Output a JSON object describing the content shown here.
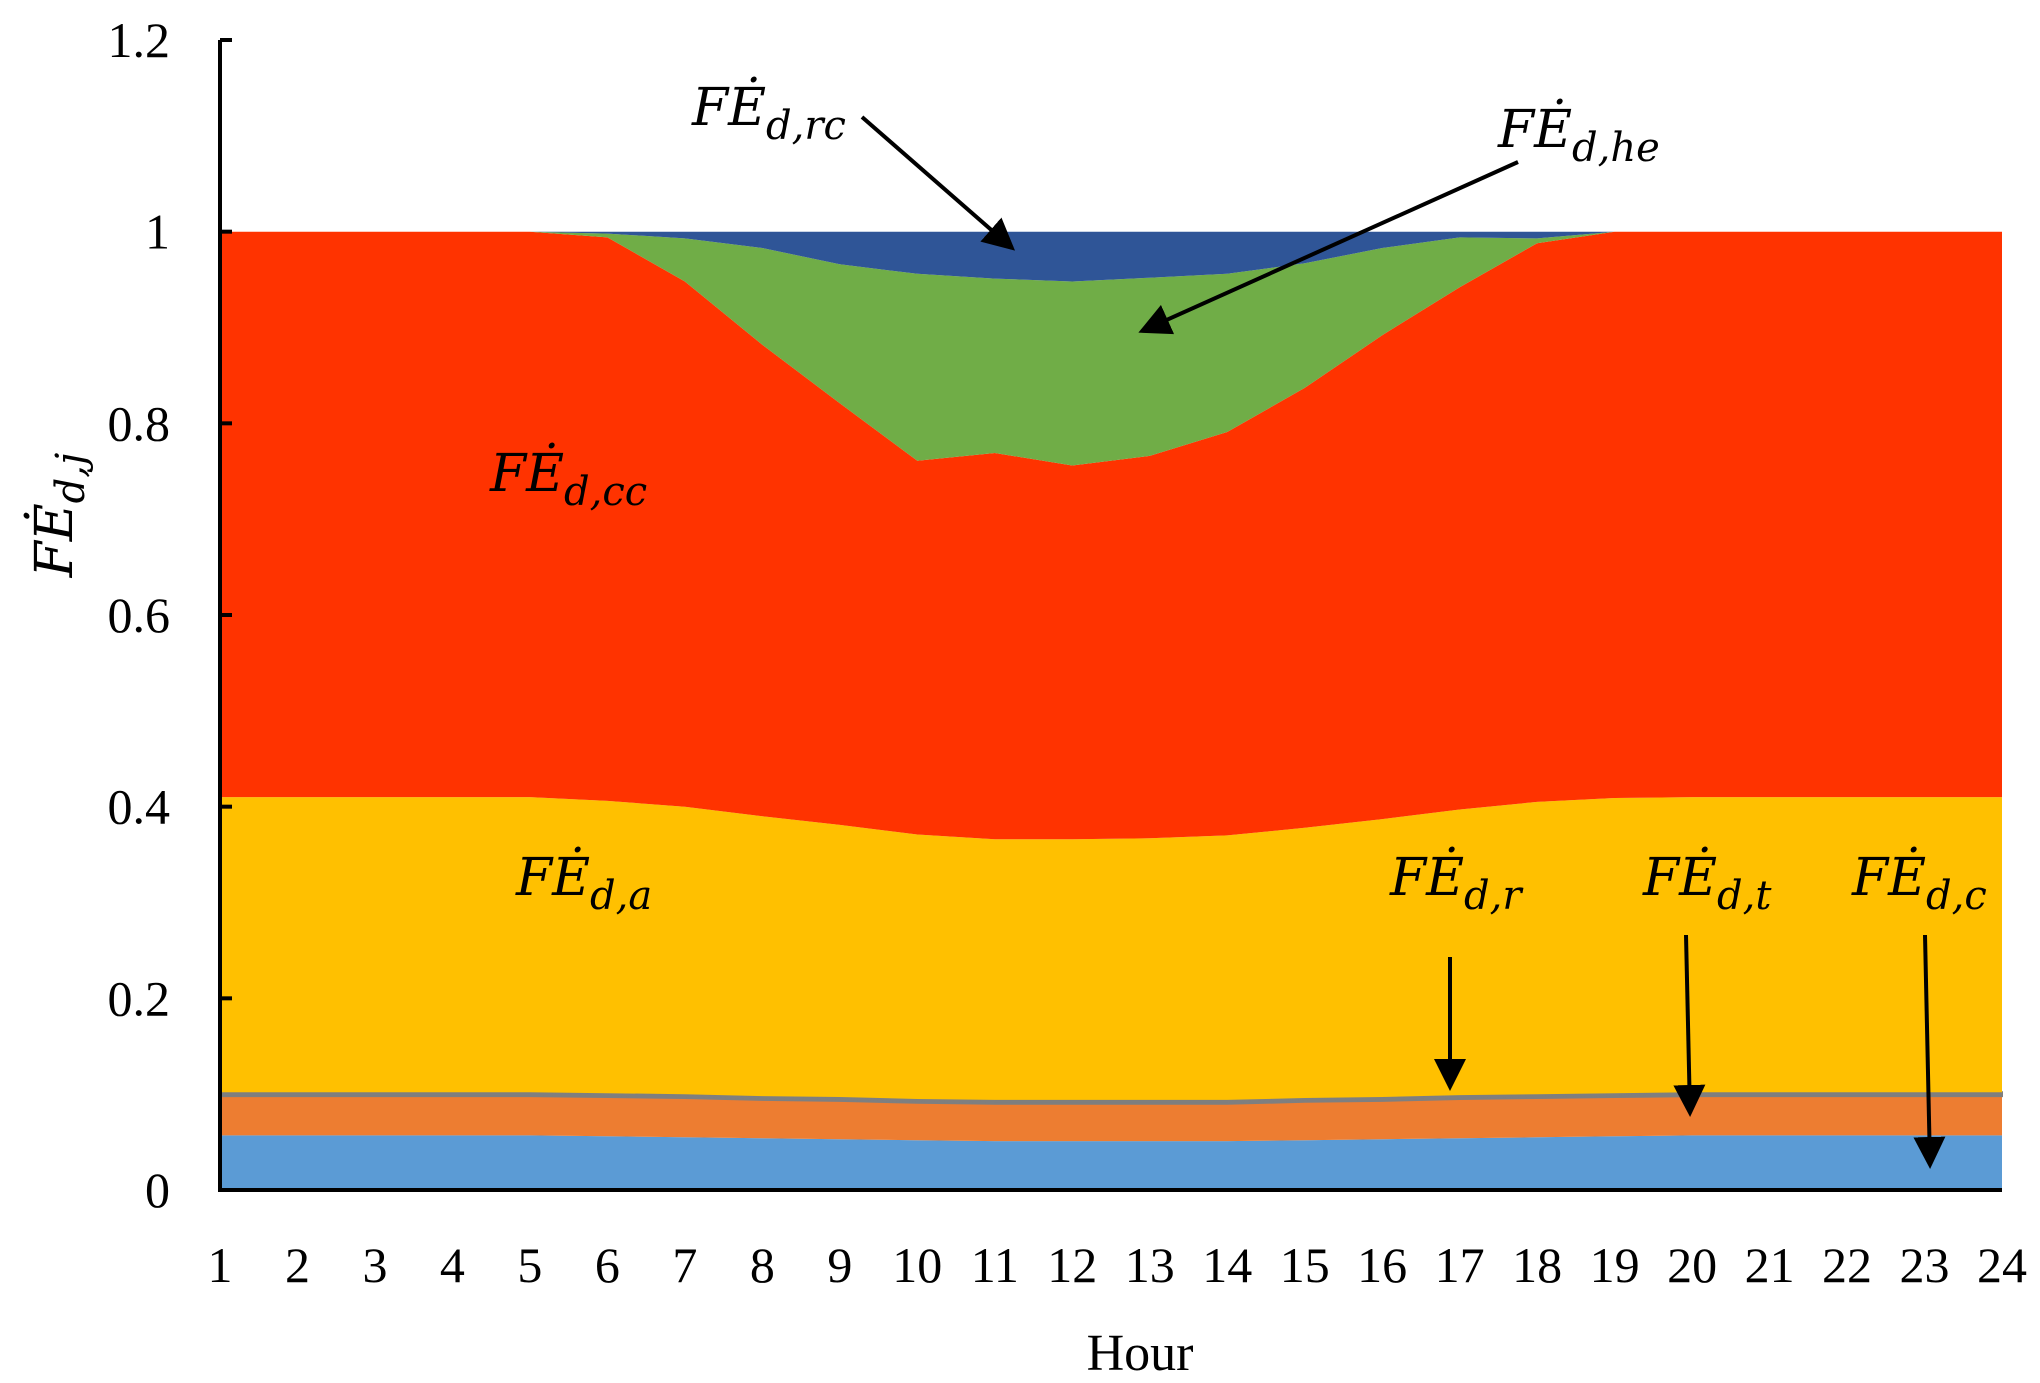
{
  "chart_data": {
    "type": "area",
    "stacked": true,
    "x": [
      1,
      2,
      3,
      4,
      5,
      6,
      7,
      8,
      9,
      10,
      11,
      12,
      13,
      14,
      15,
      16,
      17,
      18,
      19,
      20,
      21,
      22,
      23,
      24
    ],
    "xlabel": "Hour",
    "ylabel": "FĖ",
    "ylabel_sub": "d,j",
    "ylim": [
      0,
      1.2
    ],
    "yticks": [
      "0",
      "0.2",
      "0.4",
      "0.6",
      "0.8",
      "1",
      "1.2"
    ],
    "ytick_values": [
      0,
      0.2,
      0.4,
      0.6,
      0.8,
      1,
      1.2
    ],
    "xticks": [
      "1",
      "2",
      "3",
      "4",
      "5",
      "6",
      "7",
      "8",
      "9",
      "10",
      "11",
      "12",
      "13",
      "14",
      "15",
      "16",
      "17",
      "18",
      "19",
      "20",
      "21",
      "22",
      "23",
      "24"
    ],
    "grid": false,
    "legend": "none",
    "series": [
      {
        "key": "c",
        "color": "#5B9BD5",
        "values": [
          0.057,
          0.057,
          0.057,
          0.057,
          0.057,
          0.056,
          0.055,
          0.054,
          0.053,
          0.052,
          0.051,
          0.051,
          0.051,
          0.051,
          0.052,
          0.053,
          0.054,
          0.055,
          0.056,
          0.057,
          0.057,
          0.057,
          0.057,
          0.057
        ]
      },
      {
        "key": "t",
        "color": "#ED7D31",
        "values": [
          0.041,
          0.041,
          0.041,
          0.041,
          0.041,
          0.041,
          0.041,
          0.04,
          0.04,
          0.039,
          0.039,
          0.039,
          0.039,
          0.039,
          0.04,
          0.04,
          0.041,
          0.041,
          0.041,
          0.041,
          0.041,
          0.041,
          0.041,
          0.041
        ]
      },
      {
        "key": "r",
        "color": "#7F7F7F",
        "values": [
          0.004,
          0.004,
          0.004,
          0.004,
          0.004,
          0.004,
          0.004,
          0.004,
          0.004,
          0.004,
          0.004,
          0.004,
          0.004,
          0.004,
          0.004,
          0.004,
          0.004,
          0.004,
          0.004,
          0.004,
          0.004,
          0.004,
          0.004,
          0.004
        ]
      },
      {
        "key": "a",
        "color": "#FFC000",
        "values": [
          0.308,
          0.308,
          0.308,
          0.308,
          0.308,
          0.305,
          0.3,
          0.292,
          0.284,
          0.276,
          0.272,
          0.272,
          0.273,
          0.276,
          0.282,
          0.29,
          0.298,
          0.305,
          0.308,
          0.308,
          0.308,
          0.308,
          0.308,
          0.308
        ]
      },
      {
        "key": "cc",
        "color": "#FF3300",
        "values": [
          0.59,
          0.59,
          0.59,
          0.59,
          0.59,
          0.588,
          0.548,
          0.492,
          0.44,
          0.39,
          0.403,
          0.39,
          0.399,
          0.421,
          0.459,
          0.505,
          0.545,
          0.583,
          0.591,
          0.59,
          0.59,
          0.59,
          0.59,
          0.59
        ]
      },
      {
        "key": "he",
        "color": "#70AD47",
        "values": [
          0,
          0,
          0,
          0,
          0,
          0.004,
          0.045,
          0.101,
          0.145,
          0.195,
          0.182,
          0.192,
          0.186,
          0.165,
          0.13,
          0.091,
          0.052,
          0.005,
          0,
          0,
          0,
          0,
          0,
          0
        ]
      },
      {
        "key": "rc",
        "color": "#2F5597",
        "values": [
          0,
          0,
          0,
          0,
          0,
          0.002,
          0.007,
          0.017,
          0.034,
          0.044,
          0.049,
          0.052,
          0.048,
          0.044,
          0.033,
          0.017,
          0.006,
          0.007,
          0,
          0,
          0,
          0,
          0,
          0
        ]
      }
    ],
    "annotations": [
      {
        "main": "FĖ",
        "sub": "d,rc",
        "arrow_to": "rc"
      },
      {
        "main": "FĖ",
        "sub": "d,he",
        "arrow_to": "he"
      },
      {
        "main": "FĖ",
        "sub": "d,cc",
        "arrow_to": ""
      },
      {
        "main": "FĖ",
        "sub": "d,a",
        "arrow_to": ""
      },
      {
        "main": "FĖ",
        "sub": "d,r",
        "arrow_to": "r"
      },
      {
        "main": "FĖ",
        "sub": "d,t",
        "arrow_to": "t"
      },
      {
        "main": "FĖ",
        "sub": "d,c",
        "arrow_to": "c"
      }
    ]
  }
}
